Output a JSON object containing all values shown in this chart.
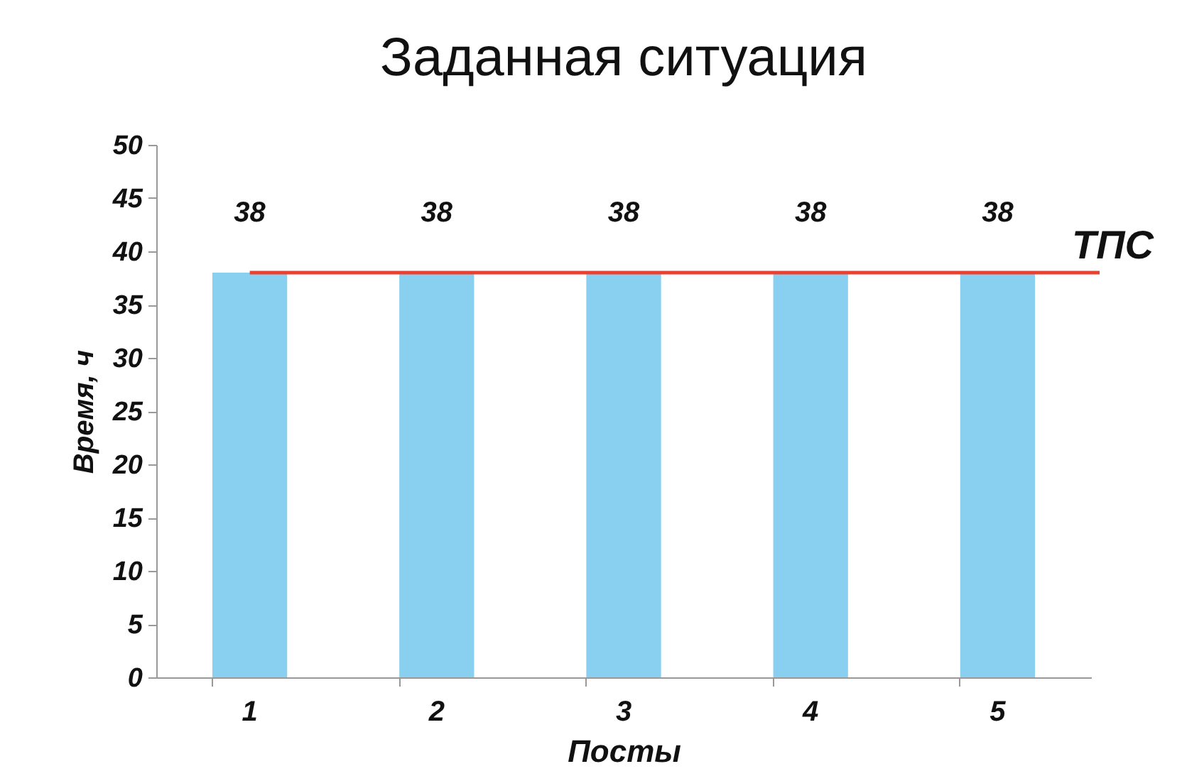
{
  "chart_data": {
    "type": "bar",
    "title": "Заданная ситуация",
    "xlabel": "Посты",
    "ylabel": "Время, ч",
    "categories": [
      "1",
      "2",
      "3",
      "4",
      "5"
    ],
    "values": [
      38,
      38,
      38,
      38,
      38
    ],
    "color": "#88cff0",
    "data_labels": true,
    "ylim": [
      0,
      50
    ],
    "yticks": [
      0,
      5,
      10,
      15,
      20,
      25,
      30,
      35,
      40,
      45,
      50
    ],
    "grid": false,
    "ref_lines": [
      {
        "axis": "y",
        "value": 38,
        "label": "ТПС",
        "color": "#e8412f"
      }
    ]
  }
}
